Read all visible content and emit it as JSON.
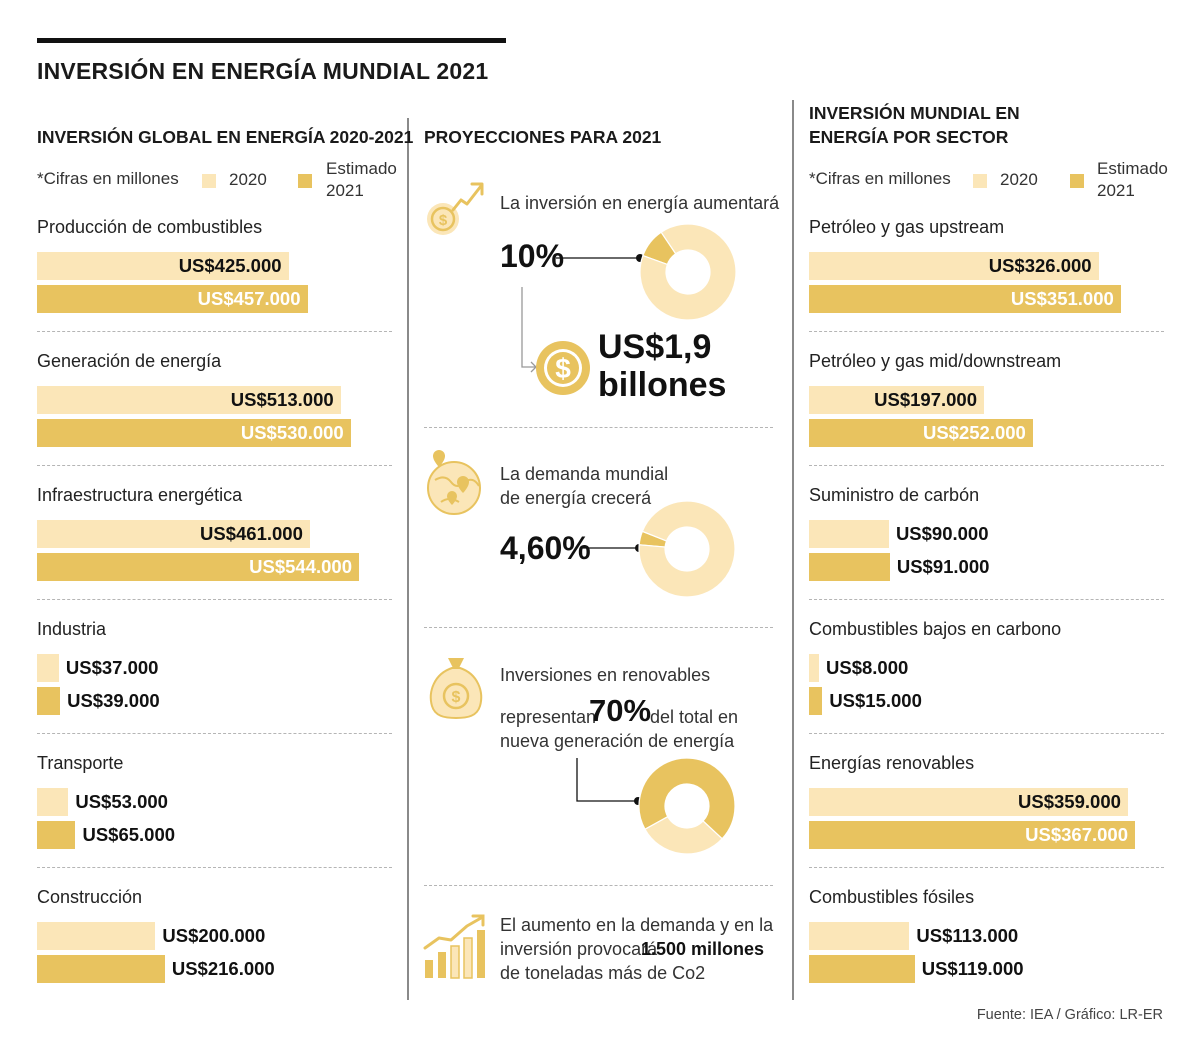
{
  "title": "INVERSIÓN EN ENERGÍA MUNDIAL 2021",
  "colors": {
    "c2020": "#fbe6b8",
    "c2021": "#e8c35f",
    "ink": "#111111"
  },
  "legend": {
    "note": "*Cifras en millones",
    "y2020": "2020",
    "y2021_line1": "Estimado",
    "y2021_line2": "2021"
  },
  "left": {
    "title": "INVERSIÓN GLOBAL EN ENERGÍA 2020-2021"
  },
  "middle": {
    "title": "PROYECCIONES PARA 2021",
    "p1": {
      "text": "La inversión en energía aumentará",
      "percent_label": "10%",
      "amount_line1": "US$1,9",
      "amount_line2": "billones"
    },
    "p2": {
      "text_line1": "La demanda mundial",
      "text_line2": "de energía crecerá",
      "percent_label": "4,60%"
    },
    "p3": {
      "text_line1": "Inversiones en renovables",
      "text_pre": "representan",
      "percent_label": "70%",
      "text_post": "del total en",
      "text_line3": "nueva generación de energía"
    },
    "p4": {
      "line1": "El aumento en la demanda y en la",
      "line2_pre": "inversión provocará",
      "line2_bold": "1.500 millones",
      "line3": "de toneladas más de Co2"
    }
  },
  "right": {
    "title_line1": "INVERSIÓN MUNDIAL EN",
    "title_line2": "ENERGÍA POR SECTOR"
  },
  "chart_data": [
    {
      "type": "bar",
      "title": "INVERSIÓN GLOBAL EN ENERGÍA 2020-2021",
      "unit_note": "*Cifras en millones",
      "series_names": [
        "2020",
        "Estimado 2021"
      ],
      "categories": [
        {
          "name": "Producción de combustibles",
          "v2020": 425000,
          "v2021": 457000,
          "label2020": "US$425.000",
          "label2021": "US$457.000"
        },
        {
          "name": "Generación de energía",
          "v2020": 513000,
          "v2021": 530000,
          "label2020": "US$513.000",
          "label2021": "US$530.000"
        },
        {
          "name": "Infraestructura energética",
          "v2020": 461000,
          "v2021": 544000,
          "label2020": "US$461.000",
          "label2021": "US$544.000"
        },
        {
          "name": "Industria",
          "v2020": 37000,
          "v2021": 39000,
          "label2020": "US$37.000",
          "label2021": "US$39.000"
        },
        {
          "name": "Transporte",
          "v2020": 53000,
          "v2021": 65000,
          "label2020": "US$53.000",
          "label2021": "US$65.000"
        },
        {
          "name": "Construcción",
          "v2020": 200000,
          "v2021": 216000,
          "label2020": "US$200.000",
          "label2021": "US$216.000"
        }
      ]
    },
    {
      "type": "bar",
      "title": "INVERSIÓN MUNDIAL EN ENERGÍA POR SECTOR",
      "unit_note": "*Cifras en millones",
      "series_names": [
        "2020",
        "Estimado 2021"
      ],
      "categories": [
        {
          "name": "Petróleo y gas upstream",
          "v2020": 326000,
          "v2021": 351000,
          "label2020": "US$326.000",
          "label2021": "US$351.000"
        },
        {
          "name": "Petróleo y gas mid/downstream",
          "v2020": 197000,
          "v2021": 252000,
          "label2020": "US$197.000",
          "label2021": "US$252.000"
        },
        {
          "name": "Suministro de carbón",
          "v2020": 90000,
          "v2021": 91000,
          "label2020": "US$90.000",
          "label2021": "US$91.000"
        },
        {
          "name": "Combustibles bajos en carbono",
          "v2020": 8000,
          "v2021": 15000,
          "label2020": "US$8.000",
          "label2021": "US$15.000"
        },
        {
          "name": "Energías renovables",
          "v2020": 359000,
          "v2021": 367000,
          "label2020": "US$359.000",
          "label2021": "US$367.000"
        },
        {
          "name": "Combustibles fósiles",
          "v2020": 113000,
          "v2021": 119000,
          "label2020": "US$113.000",
          "label2021": "US$119.000"
        }
      ]
    },
    {
      "type": "pie",
      "title": "La inversión en energía aumentará",
      "values": [
        10,
        90
      ],
      "labels": [
        "10%",
        ""
      ]
    },
    {
      "type": "pie",
      "title": "La demanda mundial de energía crecerá",
      "values": [
        4.6,
        95.4
      ],
      "labels": [
        "4,60%",
        ""
      ]
    },
    {
      "type": "pie",
      "title": "Inversiones en renovables",
      "values": [
        70,
        30
      ],
      "labels": [
        "70%",
        ""
      ]
    }
  ],
  "source": "Fuente: IEA / Gráfico: LR-ER"
}
